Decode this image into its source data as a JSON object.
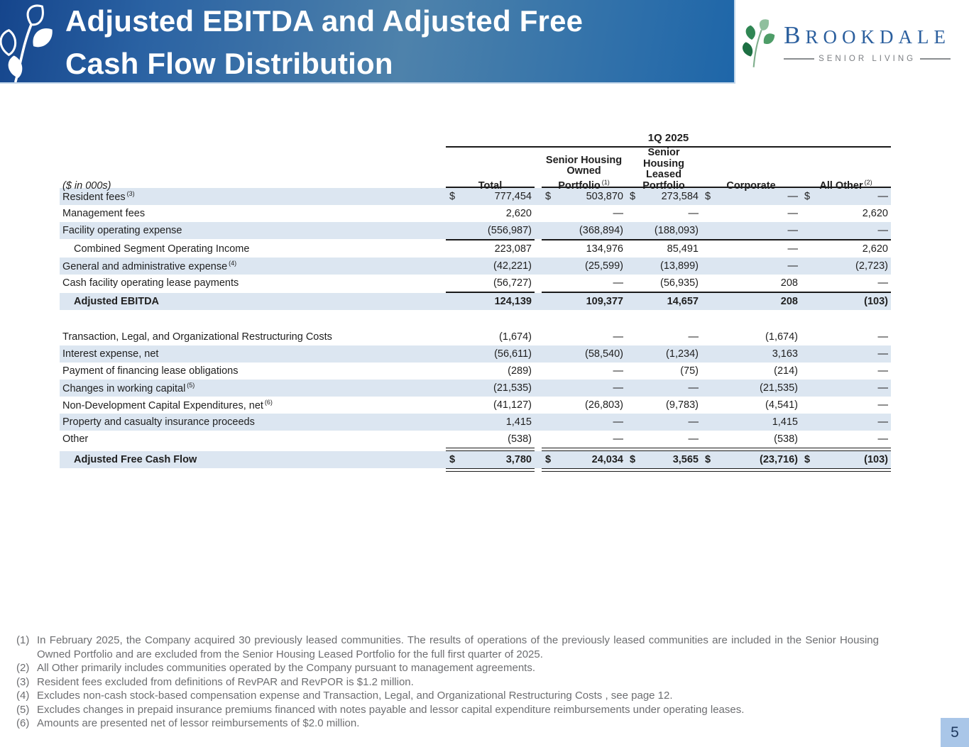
{
  "slide": {
    "title_line1": "Adjusted EBITDA and Adjusted Free",
    "title_line2": "Cash Flow Distribution",
    "page_number": "5"
  },
  "logo": {
    "brand_first": "B",
    "brand_rest": "ROOKDALE",
    "tagline": "SENIOR LIVING"
  },
  "table": {
    "period_header": "1Q 2025",
    "units_label": "($ in 000s)",
    "columns": [
      {
        "lines": [
          "Total"
        ],
        "sup": ""
      },
      {
        "lines": [
          "Senior Housing",
          "Owned",
          "Portfolio"
        ],
        "sup": "(1)"
      },
      {
        "lines": [
          "Senior Housing",
          "Leased",
          "Portfolio"
        ],
        "sup": ""
      },
      {
        "lines": [
          "Corporate"
        ],
        "sup": ""
      },
      {
        "lines": [
          "All Other"
        ],
        "sup": "(2)"
      }
    ],
    "rows": [
      {
        "label": "Resident fees",
        "sup": "(3)",
        "shaded": true,
        "dollar": true,
        "values": [
          "777,454",
          "503,870",
          "273,584",
          "—",
          "—"
        ]
      },
      {
        "label": "Management fees",
        "values": [
          "2,620",
          "—",
          "—",
          "—",
          "2,620"
        ]
      },
      {
        "label": "Facility operating expense",
        "shaded": true,
        "values": [
          "(556,987)",
          "(368,894)",
          "(188,093)",
          "—",
          "—"
        ]
      },
      {
        "rule": "single"
      },
      {
        "label": "Combined Segment Operating Income",
        "indent": true,
        "values": [
          "223,087",
          "134,976",
          "85,491",
          "—",
          "2,620"
        ]
      },
      {
        "label": "General and administrative expense",
        "sup": "(4)",
        "shaded": true,
        "values": [
          "(42,221)",
          "(25,599)",
          "(13,899)",
          "—",
          "(2,723)"
        ]
      },
      {
        "label": "Cash facility operating lease payments",
        "values": [
          "(56,727)",
          "—",
          "(56,935)",
          "208",
          "—"
        ]
      },
      {
        "rule": "single"
      },
      {
        "label": "Adjusted EBITDA",
        "indent": true,
        "bold": true,
        "shaded": true,
        "values": [
          "124,139",
          "109,377",
          "14,657",
          "208",
          "(103)"
        ]
      },
      {
        "spacer": true
      },
      {
        "label": "Transaction, Legal, and Organizational Restructuring Costs",
        "values": [
          "(1,674)",
          "—",
          "—",
          "(1,674)",
          "—"
        ]
      },
      {
        "label": "Interest expense, net",
        "shaded": true,
        "values": [
          "(56,611)",
          "(58,540)",
          "(1,234)",
          "3,163",
          "—"
        ]
      },
      {
        "label": "Payment of financing lease obligations",
        "values": [
          "(289)",
          "—",
          "(75)",
          "(214)",
          "—"
        ]
      },
      {
        "label": "Changes in working capital",
        "sup": "(5)",
        "shaded": true,
        "values": [
          "(21,535)",
          "—",
          "—",
          "(21,535)",
          "—"
        ]
      },
      {
        "label": "Non-Development Capital Expenditures, net",
        "sup": "(6)",
        "values": [
          "(41,127)",
          "(26,803)",
          "(9,783)",
          "(4,541)",
          "—"
        ]
      },
      {
        "label": "Property and casualty insurance proceeds",
        "shaded": true,
        "values": [
          "1,415",
          "—",
          "—",
          "1,415",
          "—"
        ]
      },
      {
        "label": "Other",
        "values": [
          "(538)",
          "—",
          "—",
          "(538)",
          "—"
        ]
      },
      {
        "rule": "double"
      },
      {
        "label": "Adjusted Free Cash Flow",
        "indent": true,
        "bold": true,
        "shaded": true,
        "dollar": true,
        "values": [
          "3,780",
          "24,034",
          "3,565",
          "(23,716)",
          "(103)"
        ]
      },
      {
        "rule": "double"
      }
    ]
  },
  "footnotes": [
    {
      "num": "(1)",
      "text": "In February 2025, the Company acquired 30 previously leased communities. The results of operations of the previously leased communities are included in the Senior Housing Owned Portfolio and are excluded from the Senior Housing Leased Portfolio for the full first quarter of 2025."
    },
    {
      "num": "(2)",
      "text": "All Other primarily includes communities operated by the Company pursuant to management agreements."
    },
    {
      "num": "(3)",
      "text": "Resident fees excluded from definitions of RevPAR and RevPOR is $1.2 million."
    },
    {
      "num": "(4)",
      "text": "Excludes non-cash stock-based compensation expense and Transaction, Legal, and Organizational Restructuring Costs , see page 12."
    },
    {
      "num": "(5)",
      "text": "Excludes changes in prepaid insurance premiums financed with notes payable and lessor capital expenditure reimbursements under operating leases."
    },
    {
      "num": "(6)",
      "text": "Amounts are presented net of lessor reimbursements of $2.0 million."
    }
  ],
  "colors": {
    "row_shade": "#dce6f1",
    "banner_left": "#15458c",
    "banner_mid": "#4e82ab",
    "banner_right": "#1e66a9",
    "brand_navy": "#2b5f9e",
    "footnote_gray": "#6d6e71",
    "page_badge_bg": "#a9c6e8",
    "page_badge_text": "#1f3a60",
    "rule_black": "#1a1a1a"
  }
}
